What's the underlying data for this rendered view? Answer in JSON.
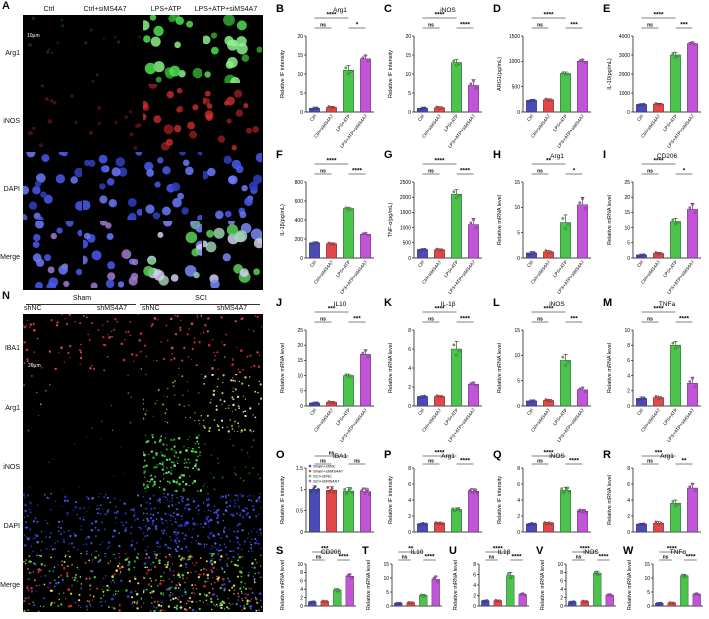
{
  "panelA": {
    "label": "A",
    "columns": [
      "Ctrl",
      "Ctrl+siMS4A7",
      "LPS+ATP",
      "LPS+ATP+siMS4A7"
    ],
    "rows": [
      "Arg1",
      "iNOS",
      "DAPI",
      "Merge"
    ],
    "scale": "10μm"
  },
  "panelN": {
    "label": "N",
    "groups": [
      "Sham",
      "SCI"
    ],
    "columns": [
      "shNC",
      "shMS4A7",
      "shNC",
      "shMS4A7"
    ],
    "rows": [
      "IBA1",
      "Arg1",
      "iNOS",
      "DAPI",
      "Merge"
    ],
    "scale": "20μm"
  },
  "colors": {
    "g1": "#4a4ab8",
    "g2": "#e24848",
    "g3": "#4ac44a",
    "g4": "#c154d8"
  },
  "chart_data": [
    {
      "id": "B",
      "type": "bar",
      "title": "Arg1",
      "ylabel": "Relative IF intensity",
      "ylim": [
        0,
        20
      ],
      "yticks": [
        0,
        5,
        10,
        15,
        20
      ],
      "categories": [
        "Ctrl",
        "Ctrl+siMS4A7",
        "LPS+ATP",
        "LPS+ATP+siMS4A7"
      ],
      "values": [
        1,
        1.2,
        11,
        14
      ],
      "errors": [
        0.3,
        0.3,
        1.2,
        1.0
      ],
      "sig": [
        {
          "a": 0,
          "b": 1,
          "t": "ns"
        },
        {
          "a": 0,
          "b": 2,
          "t": "****"
        },
        {
          "a": 2,
          "b": 3,
          "t": "*"
        }
      ]
    },
    {
      "id": "C",
      "type": "bar",
      "title": "iNOS",
      "ylabel": "Relative IF intensity",
      "ylim": [
        0,
        20
      ],
      "yticks": [
        0,
        5,
        10,
        15,
        20
      ],
      "categories": [
        "Ctrl",
        "Ctrl+siMS4A7",
        "LPS+ATP",
        "LPS+ATP+siMS4A7"
      ],
      "values": [
        1,
        1.1,
        13,
        7
      ],
      "errors": [
        0.3,
        0.3,
        0.8,
        1.5
      ],
      "sig": [
        {
          "a": 0,
          "b": 1,
          "t": "ns"
        },
        {
          "a": 0,
          "b": 2,
          "t": "****"
        },
        {
          "a": 2,
          "b": 3,
          "t": "****"
        }
      ]
    },
    {
      "id": "D",
      "type": "bar",
      "title": "",
      "ylabel": "ARG1(pg/mL)",
      "ylim": [
        0,
        1500
      ],
      "yticks": [
        0,
        500,
        1000,
        1500
      ],
      "categories": [
        "Ctrl",
        "Ctrl+siMS4A7",
        "LPS+ATP",
        "LPS+ATP+siMS4A7"
      ],
      "values": [
        230,
        240,
        760,
        1000
      ],
      "errors": [
        20,
        20,
        30,
        40
      ],
      "sig": [
        {
          "a": 0,
          "b": 1,
          "t": "ns"
        },
        {
          "a": 0,
          "b": 2,
          "t": "****"
        },
        {
          "a": 2,
          "b": 3,
          "t": "***"
        }
      ]
    },
    {
      "id": "E",
      "type": "bar",
      "title": "",
      "ylabel": "IL-10(pg/mL)",
      "ylim": [
        0,
        4000
      ],
      "yticks": [
        0,
        1000,
        2000,
        3000,
        4000
      ],
      "categories": [
        "Ctrl",
        "Ctrl+siMS4A7",
        "LPS+ATP",
        "LPS+ATP+siMS4A7"
      ],
      "values": [
        400,
        420,
        3000,
        3600
      ],
      "errors": [
        40,
        40,
        150,
        80
      ],
      "sig": [
        {
          "a": 0,
          "b": 1,
          "t": "ns"
        },
        {
          "a": 0,
          "b": 2,
          "t": "****"
        },
        {
          "a": 2,
          "b": 3,
          "t": "***"
        }
      ]
    },
    {
      "id": "F",
      "type": "bar",
      "title": "",
      "ylabel": "IL-1β(pg/mL)",
      "ylim": [
        0,
        800
      ],
      "yticks": [
        0,
        200,
        400,
        600,
        800
      ],
      "categories": [
        "Ctrl",
        "Ctrl+siMS4A7",
        "LPS+ATP",
        "LPS+ATP+siMS4A7"
      ],
      "values": [
        160,
        150,
        520,
        250
      ],
      "errors": [
        10,
        10,
        15,
        15
      ],
      "sig": [
        {
          "a": 0,
          "b": 1,
          "t": "ns"
        },
        {
          "a": 0,
          "b": 2,
          "t": "****"
        },
        {
          "a": 2,
          "b": 3,
          "t": "****"
        }
      ]
    },
    {
      "id": "G",
      "type": "bar",
      "title": "",
      "ylabel": "TNF-α(pg/mL)",
      "ylim": [
        0,
        2500
      ],
      "yticks": [
        0,
        500,
        1000,
        1500,
        2000,
        2500
      ],
      "categories": [
        "Ctrl",
        "Ctrl+siMS4A7",
        "LPS+ATP",
        "LPS+ATP+siMS4A7"
      ],
      "values": [
        280,
        270,
        2100,
        1100
      ],
      "errors": [
        30,
        30,
        150,
        200
      ],
      "sig": [
        {
          "a": 0,
          "b": 1,
          "t": "ns"
        },
        {
          "a": 0,
          "b": 2,
          "t": "****"
        },
        {
          "a": 2,
          "b": 3,
          "t": "****"
        }
      ]
    },
    {
      "id": "H",
      "type": "bar",
      "title": "Arg1",
      "ylabel": "Relative mRNA level",
      "ylim": [
        0,
        15
      ],
      "yticks": [
        0,
        5,
        10,
        15
      ],
      "categories": [
        "Ctrl",
        "Ctrl+siMS4A7",
        "LPS+ATP",
        "LPS+ATP+siMS4A7"
      ],
      "values": [
        1,
        1.2,
        7,
        10.5
      ],
      "errors": [
        0.3,
        0.3,
        1.5,
        1.5
      ],
      "sig": [
        {
          "a": 0,
          "b": 1,
          "t": "ns"
        },
        {
          "a": 0,
          "b": 2,
          "t": "**"
        },
        {
          "a": 2,
          "b": 3,
          "t": "*"
        }
      ]
    },
    {
      "id": "I",
      "type": "bar",
      "title": "CD206",
      "ylabel": "Relative mRNA level",
      "ylim": [
        0,
        25
      ],
      "yticks": [
        0,
        5,
        10,
        15,
        20,
        25
      ],
      "categories": [
        "Ctrl",
        "Ctrl+siMS4A7",
        "LPS+ATP",
        "LPS+ATP+siMS4A7"
      ],
      "values": [
        1,
        1.5,
        12,
        16
      ],
      "errors": [
        0.3,
        0.4,
        1.0,
        2.0
      ],
      "sig": [
        {
          "a": 0,
          "b": 1,
          "t": "ns"
        },
        {
          "a": 0,
          "b": 2,
          "t": "****"
        },
        {
          "a": 2,
          "b": 3,
          "t": "*"
        }
      ]
    },
    {
      "id": "J",
      "type": "bar",
      "title": "IL10",
      "ylabel": "Relative mRNA level",
      "ylim": [
        0,
        25
      ],
      "yticks": [
        0,
        5,
        10,
        15,
        20,
        25
      ],
      "categories": [
        "Ctrl",
        "Ctrl+siMS4A7",
        "LPS+ATP",
        "LPS+ATP+siMS4A7"
      ],
      "values": [
        1,
        1.2,
        10,
        17
      ],
      "errors": [
        0.3,
        0.3,
        0.5,
        1.5
      ],
      "sig": [
        {
          "a": 0,
          "b": 1,
          "t": "ns"
        },
        {
          "a": 0,
          "b": 2,
          "t": "***"
        },
        {
          "a": 2,
          "b": 3,
          "t": "***"
        }
      ]
    },
    {
      "id": "K",
      "type": "bar",
      "title": "IL-1β",
      "ylabel": "Relative mRNA level",
      "ylim": [
        0,
        8
      ],
      "yticks": [
        0,
        2,
        4,
        6,
        8
      ],
      "categories": [
        "Ctrl",
        "Ctrl+siMS4A7",
        "LPS+ATP",
        "LPS+ATP+siMS4A7"
      ],
      "values": [
        1,
        1,
        6,
        2.3
      ],
      "errors": [
        0.1,
        0.1,
        0.8,
        0.2
      ],
      "sig": [
        {
          "a": 0,
          "b": 1,
          "t": "ns"
        },
        {
          "a": 0,
          "b": 2,
          "t": "****"
        },
        {
          "a": 2,
          "b": 3,
          "t": "****"
        }
      ]
    },
    {
      "id": "L",
      "type": "bar",
      "title": "iNOS",
      "ylabel": "Relative mRNA level",
      "ylim": [
        0,
        15
      ],
      "yticks": [
        0,
        5,
        10,
        15
      ],
      "categories": [
        "Ctrl",
        "Ctrl+siMS4A7",
        "LPS+ATP",
        "LPS+ATP+siMS4A7"
      ],
      "values": [
        1,
        1.1,
        9,
        3.2
      ],
      "errors": [
        0.2,
        0.2,
        1.2,
        0.5
      ],
      "sig": [
        {
          "a": 0,
          "b": 1,
          "t": "ns"
        },
        {
          "a": 0,
          "b": 2,
          "t": "****"
        },
        {
          "a": 2,
          "b": 3,
          "t": "***"
        }
      ]
    },
    {
      "id": "M",
      "type": "bar",
      "title": "TNFa",
      "ylabel": "Relative mRNA level",
      "ylim": [
        0,
        10
      ],
      "yticks": [
        0,
        2,
        4,
        6,
        8,
        10
      ],
      "categories": [
        "Ctrl",
        "Ctrl+siMS4A7",
        "LPS+ATP",
        "LPS+ATP+siMS4A7"
      ],
      "values": [
        1,
        1.1,
        8,
        3
      ],
      "errors": [
        0.2,
        0.2,
        0.5,
        0.8
      ],
      "sig": [
        {
          "a": 0,
          "b": 1,
          "t": "ns"
        },
        {
          "a": 0,
          "b": 2,
          "t": "****"
        },
        {
          "a": 2,
          "b": 3,
          "t": "****"
        }
      ]
    },
    {
      "id": "O",
      "type": "bar",
      "title": "IBA1",
      "ylabel": "Relative IF intensity",
      "ylim": [
        0,
        1.5
      ],
      "yticks": [
        0,
        0.5,
        1.0,
        1.5
      ],
      "categories": [
        "Sham+shNC",
        "Sham+shMS4A7",
        "SCI+shNC",
        "SCI+shMS4A7"
      ],
      "values": [
        1.0,
        0.98,
        0.96,
        0.95
      ],
      "errors": [
        0.08,
        0.08,
        0.08,
        0.08
      ],
      "legend": [
        "Sham+shNC",
        "Sham+shMS4A7",
        "SCI+shNC",
        "SCI+shMS4A7"
      ],
      "sig": [
        {
          "a": 0,
          "b": 1,
          "t": "ns"
        },
        {
          "a": 0,
          "b": 2,
          "t": "ns"
        },
        {
          "a": 2,
          "b": 3,
          "t": "ns"
        }
      ]
    },
    {
      "id": "P",
      "type": "bar",
      "title": "Arg1",
      "ylabel": "Relative IF intensity",
      "ylim": [
        0,
        8
      ],
      "yticks": [
        0,
        2,
        4,
        6,
        8
      ],
      "categories": [
        "Sham+shNC",
        "Sham+shMS4A7",
        "SCI+shNC",
        "SCI+shMS4A7"
      ],
      "values": [
        1,
        1.1,
        2.8,
        5.1
      ],
      "errors": [
        0.1,
        0.1,
        0.2,
        0.3
      ],
      "sig": [
        {
          "a": 0,
          "b": 1,
          "t": "ns"
        },
        {
          "a": 0,
          "b": 2,
          "t": "****"
        },
        {
          "a": 2,
          "b": 3,
          "t": "****"
        }
      ]
    },
    {
      "id": "Q",
      "type": "bar",
      "title": "iNOS",
      "ylabel": "Relative IF intensity",
      "ylim": [
        0,
        8
      ],
      "yticks": [
        0,
        2,
        4,
        6,
        8
      ],
      "categories": [
        "Sham+shNC",
        "Sham+shMS4A7",
        "SCI+shNC",
        "SCI+shMS4A7"
      ],
      "values": [
        1,
        1.1,
        5.2,
        2.6
      ],
      "errors": [
        0.1,
        0.1,
        0.4,
        0.2
      ],
      "sig": [
        {
          "a": 0,
          "b": 1,
          "t": "ns"
        },
        {
          "a": 0,
          "b": 2,
          "t": "****"
        },
        {
          "a": 2,
          "b": 3,
          "t": "****"
        }
      ]
    },
    {
      "id": "R",
      "type": "bar",
      "title": "Arg1",
      "ylabel": "Relative mRNA level",
      "ylim": [
        0,
        8
      ],
      "yticks": [
        0,
        2,
        4,
        6,
        8
      ],
      "categories": [
        "Sham+shNC",
        "Sham+shMS4A7",
        "SCI+shNC",
        "SCI+shMS4A7"
      ],
      "values": [
        1,
        1.1,
        3.6,
        5.5
      ],
      "errors": [
        0.1,
        0.2,
        0.4,
        0.6
      ],
      "sig": [
        {
          "a": 0,
          "b": 1,
          "t": "ns"
        },
        {
          "a": 0,
          "b": 2,
          "t": "***"
        },
        {
          "a": 2,
          "b": 3,
          "t": "**"
        }
      ]
    },
    {
      "id": "S",
      "type": "bar",
      "title": "CD206",
      "ylabel": "Relative mRNA level",
      "ylim": [
        0,
        10
      ],
      "yticks": [
        0,
        2,
        4,
        6,
        8,
        10
      ],
      "categories": [
        "Sham+shNC",
        "Sham+shMS4A7",
        "SCI+shNC",
        "SCI+shMS4A7"
      ],
      "values": [
        1,
        1.1,
        3.8,
        7.1
      ],
      "errors": [
        0.1,
        0.1,
        0.3,
        0.5
      ],
      "sig": [
        {
          "a": 0,
          "b": 1,
          "t": "ns"
        },
        {
          "a": 0,
          "b": 2,
          "t": "***"
        },
        {
          "a": 2,
          "b": 3,
          "t": "****"
        }
      ]
    },
    {
      "id": "T",
      "type": "bar",
      "title": "IL10",
      "ylabel": "Relative mRNA level",
      "ylim": [
        0,
        15
      ],
      "yticks": [
        0,
        5,
        10,
        15
      ],
      "categories": [
        "Sham+shNC",
        "Sham+shMS4A7",
        "SCI+shNC",
        "SCI+shMS4A7"
      ],
      "values": [
        1,
        1.2,
        3.8,
        9.5
      ],
      "errors": [
        0.1,
        0.1,
        0.3,
        1.2
      ],
      "sig": [
        {
          "a": 0,
          "b": 1,
          "t": "ns"
        },
        {
          "a": 0,
          "b": 2,
          "t": "**"
        },
        {
          "a": 2,
          "b": 3,
          "t": "****"
        }
      ]
    },
    {
      "id": "U",
      "type": "bar",
      "title": "IL1β",
      "ylabel": "Relative mRNA level",
      "ylim": [
        0,
        8
      ],
      "yticks": [
        0,
        2,
        4,
        6,
        8
      ],
      "categories": [
        "Sham+shNC",
        "Sham+shMS4A7",
        "SCI+shNC",
        "SCI+shMS4A7"
      ],
      "values": [
        1,
        1,
        5.8,
        2.2
      ],
      "errors": [
        0.1,
        0.1,
        0.6,
        0.2
      ],
      "sig": [
        {
          "a": 0,
          "b": 1,
          "t": "ns"
        },
        {
          "a": 0,
          "b": 2,
          "t": "****"
        },
        {
          "a": 2,
          "b": 3,
          "t": "****"
        }
      ]
    },
    {
      "id": "V",
      "type": "bar",
      "title": "iNOS",
      "ylabel": "Relative mRNA level",
      "ylim": [
        0,
        10
      ],
      "yticks": [
        0,
        2,
        4,
        6,
        8,
        10
      ],
      "categories": [
        "Sham+shNC",
        "Sham+shMS4A7",
        "SCI+shNC",
        "SCI+shMS4A7"
      ],
      "values": [
        1,
        1.1,
        7.8,
        2.6
      ],
      "errors": [
        0.1,
        0.1,
        0.5,
        0.2
      ],
      "sig": [
        {
          "a": 0,
          "b": 1,
          "t": "ns"
        },
        {
          "a": 0,
          "b": 2,
          "t": "****"
        },
        {
          "a": 2,
          "b": 3,
          "t": "****"
        }
      ]
    },
    {
      "id": "W",
      "type": "bar",
      "title": "TNFα",
      "ylabel": "Relative mRNA level",
      "ylim": [
        0,
        15
      ],
      "yticks": [
        0,
        5,
        10,
        15
      ],
      "categories": [
        "Sham+shNC",
        "Sham+shMS4A7",
        "SCI+shNC",
        "SCI+shMS4A7"
      ],
      "values": [
        1,
        1.1,
        10.8,
        4.2
      ],
      "errors": [
        0.1,
        0.1,
        0.5,
        0.3
      ],
      "sig": [
        {
          "a": 0,
          "b": 1,
          "t": "ns"
        },
        {
          "a": 0,
          "b": 2,
          "t": "****"
        },
        {
          "a": 2,
          "b": 3,
          "t": "****"
        }
      ]
    }
  ]
}
